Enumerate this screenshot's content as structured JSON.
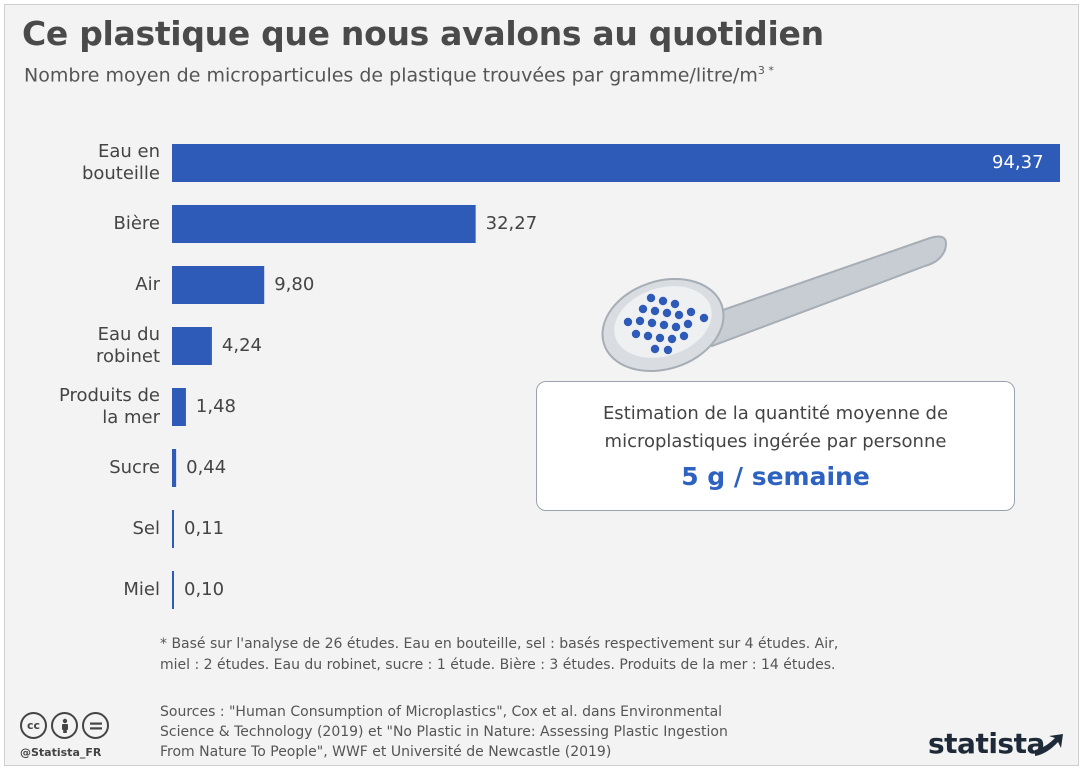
{
  "header": {
    "title": "Ce plastique que nous avalons au quotidien",
    "subtitle": "Nombre moyen de microparticules de plastique trouvées par gramme/litre/m",
    "subtitle_sup": "3 *"
  },
  "chart_data": {
    "type": "bar",
    "orientation": "horizontal",
    "title": "Ce plastique que nous avalons au quotidien",
    "subtitle": "Nombre moyen de microparticules de plastique trouvées par gramme/litre/m³ *",
    "categories": [
      [
        "Eau en",
        "bouteille"
      ],
      [
        "Bière"
      ],
      [
        "Air"
      ],
      [
        "Eau du",
        "robinet"
      ],
      [
        "Produits de",
        "la mer"
      ],
      [
        "Sucre"
      ],
      [
        "Sel"
      ],
      [
        "Miel"
      ]
    ],
    "values": [
      94.37,
      32.27,
      9.8,
      4.24,
      1.48,
      0.44,
      0.11,
      0.1
    ],
    "value_labels": [
      "94,37",
      "32,27",
      "9,80",
      "4,24",
      "1,48",
      "0,44",
      "0,11",
      "0,10"
    ],
    "xlim": [
      0,
      94.37
    ],
    "bar_color": "#2e5ab8",
    "grid": false,
    "legend": "none"
  },
  "info_box": {
    "line1": "Estimation de la quantité moyenne de",
    "line2": "microplastiques ingérée par personne",
    "value": "5 g / semaine",
    "value_color": "#2e62c0"
  },
  "footnote": {
    "line1": "* Basé sur l'analyse de 26 études. Eau en bouteille, sel : basés respectivement sur 4 études. Air,",
    "line2": "miel : 2 études. Eau du robinet, sucre : 1 étude. Bière : 3 études. Produits de la mer : 14 études."
  },
  "sources": {
    "line1": "Sources : \"Human Consumption of Microplastics\", Cox et al. dans Environmental",
    "line2": "Science & Technology (2019) et \"No Plastic in Nature: Assessing Plastic Ingestion",
    "line3": "From Nature To People\", WWF et Université de Newcastle (2019)"
  },
  "branding": {
    "handle": "@Statista_FR",
    "logo_text": "statista",
    "icons": [
      "cc-license-icon",
      "attribution-icon",
      "no-derivatives-icon"
    ]
  }
}
